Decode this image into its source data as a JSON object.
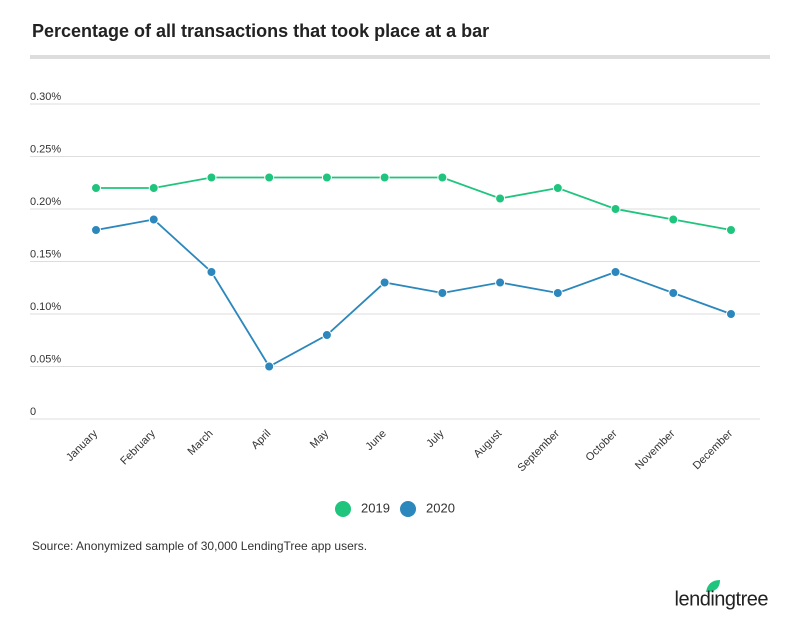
{
  "chart_data": {
    "type": "line",
    "title": "Percentage of all transactions that took place at a bar",
    "categories": [
      "January",
      "February",
      "March",
      "April",
      "May",
      "June",
      "July",
      "August",
      "September",
      "October",
      "November",
      "December"
    ],
    "series": [
      {
        "name": "2019",
        "color": "#1fc47d",
        "values": [
          0.22,
          0.22,
          0.23,
          0.23,
          0.23,
          0.23,
          0.23,
          0.21,
          0.22,
          0.2,
          0.19,
          0.18
        ]
      },
      {
        "name": "2020",
        "color": "#2b87bc",
        "values": [
          0.18,
          0.19,
          0.14,
          0.05,
          0.08,
          0.13,
          0.12,
          0.13,
          0.12,
          0.14,
          0.12,
          0.1
        ]
      }
    ],
    "ylim": [
      0,
      0.3
    ],
    "yticks": [
      0,
      {
        "value": 0.05,
        "label": "0.05%"
      },
      {
        "value": 0.1,
        "label": "0.10%"
      },
      {
        "value": 0.15,
        "label": "0.15%"
      },
      {
        "value": 0.2,
        "label": "0.20%"
      },
      {
        "value": 0.25,
        "label": "0.25%"
      },
      {
        "value": 0.3,
        "label": "0.30%"
      }
    ],
    "grid": true,
    "legend": "bottom",
    "source": "Source: Anonymized sample of 30,000 LendingTree app users.",
    "logo": "lendingtree"
  }
}
